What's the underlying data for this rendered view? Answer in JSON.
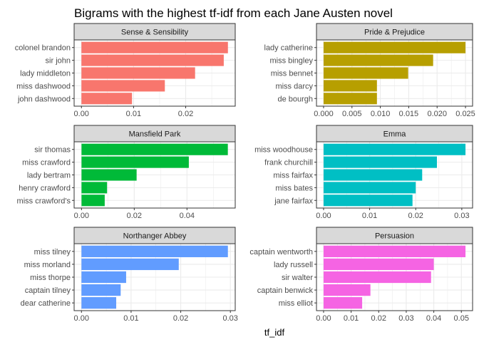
{
  "chart_data": {
    "type": "bar",
    "orientation": "horizontal",
    "title": "Bigrams with the highest tf-idf from each Jane Austen novel",
    "xlabel": "tf_idf",
    "ylabel": "",
    "grid": true,
    "legend": "none",
    "panels": [
      {
        "name": "Sense & Sensibility",
        "color": "#F8766D",
        "categories": [
          "colonel brandon",
          "sir john",
          "lady middleton",
          "miss dashwood",
          "john dashwood"
        ],
        "values": [
          0.0281,
          0.0273,
          0.0218,
          0.016,
          0.0097
        ],
        "xlim": [
          -0.0014,
          0.0295
        ],
        "ticks": [
          0.0,
          0.01,
          0.02
        ],
        "tick_labels": [
          "0.00",
          "0.01",
          "0.02"
        ]
      },
      {
        "name": "Pride & Prejudice",
        "color": "#B79F00",
        "categories": [
          "lady catherine",
          "miss bingley",
          "miss bennet",
          "miss darcy",
          "de bourgh"
        ],
        "values": [
          0.025,
          0.0193,
          0.0149,
          0.0094,
          0.0094
        ],
        "xlim": [
          -0.00125,
          0.02625
        ],
        "ticks": [
          0.0,
          0.005,
          0.01,
          0.015,
          0.02,
          0.025
        ],
        "tick_labels": [
          "0.000",
          "0.005",
          "0.010",
          "0.015",
          "0.020",
          "0.025"
        ]
      },
      {
        "name": "Mansfield Park",
        "color": "#00BA38",
        "categories": [
          "sir thomas",
          "miss crawford",
          "lady bertram",
          "henry crawford",
          "miss crawford's"
        ],
        "values": [
          0.0555,
          0.0407,
          0.0209,
          0.0097,
          0.0088
        ],
        "xlim": [
          -0.0028,
          0.0583
        ],
        "ticks": [
          0.0,
          0.02,
          0.04
        ],
        "tick_labels": [
          "0.00",
          "0.02",
          "0.04"
        ]
      },
      {
        "name": "Emma",
        "color": "#00BFC4",
        "categories": [
          "miss woodhouse",
          "frank churchill",
          "miss fairfax",
          "miss bates",
          "jane fairfax"
        ],
        "values": [
          0.0308,
          0.0246,
          0.0214,
          0.02,
          0.0193
        ],
        "xlim": [
          -0.00154,
          0.03234
        ],
        "ticks": [
          0.0,
          0.01,
          0.02,
          0.03
        ],
        "tick_labels": [
          "0.00",
          "0.01",
          "0.02",
          "0.03"
        ]
      },
      {
        "name": "Northanger Abbey",
        "color": "#619CFF",
        "categories": [
          "miss tilney",
          "miss morland",
          "miss thorpe",
          "captain tilney",
          "dear catherine"
        ],
        "values": [
          0.0295,
          0.0196,
          0.009,
          0.0079,
          0.007
        ],
        "xlim": [
          -0.001475,
          0.030975
        ],
        "ticks": [
          0.0,
          0.01,
          0.02,
          0.03
        ],
        "tick_labels": [
          "0.00",
          "0.01",
          "0.02",
          "0.03"
        ]
      },
      {
        "name": "Persuasion",
        "color": "#F564E3",
        "categories": [
          "captain wentworth",
          "lady russell",
          "sir walter",
          "captain benwick",
          "miss elliot"
        ],
        "values": [
          0.0515,
          0.04,
          0.039,
          0.017,
          0.014
        ],
        "xlim": [
          -0.002575,
          0.054075
        ],
        "ticks": [
          0.0,
          0.01,
          0.02,
          0.03,
          0.04,
          0.05
        ],
        "tick_labels": [
          "0.00",
          "0.01",
          "0.02",
          "0.03",
          "0.04",
          "0.05"
        ]
      }
    ]
  }
}
